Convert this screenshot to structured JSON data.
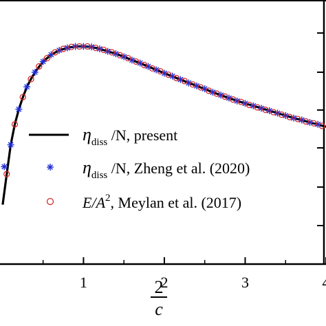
{
  "colors": {
    "present": "#000000",
    "zheng": "#1f2fd6",
    "meylan": "#d62c2c",
    "axis": "#000000"
  },
  "chart_data": {
    "type": "line",
    "title": "",
    "xlabel": {
      "numerator": "2",
      "denominator": "c"
    },
    "ylabel": "",
    "xlim": [
      -0.05,
      4.0
    ],
    "ylim": [
      0.65,
      1.15
    ],
    "xticks": [
      {
        "value": 1,
        "label": "1"
      },
      {
        "value": 2,
        "label": "2"
      },
      {
        "value": 3,
        "label": "3"
      },
      {
        "value": 4,
        "label": "4"
      }
    ],
    "legend_position": "center-left",
    "series": [
      {
        "name": "η_diss /N, present",
        "legend": {
          "symbol": "η",
          "sub": "diss",
          "rest": " /N, present"
        },
        "style": "line",
        "x": [
          0.0,
          0.05,
          0.1,
          0.15,
          0.2,
          0.25,
          0.3,
          0.35,
          0.4,
          0.5,
          0.6,
          0.7,
          0.8,
          0.9,
          1.0,
          1.1,
          1.2,
          1.4,
          1.6,
          1.8,
          2.0,
          2.2,
          2.4,
          2.6,
          2.8,
          3.0,
          3.2,
          3.4,
          3.6,
          3.8,
          4.0
        ],
        "y": [
          0.772,
          0.835,
          0.895,
          0.937,
          0.968,
          0.993,
          1.014,
          1.03,
          1.044,
          1.066,
          1.08,
          1.089,
          1.094,
          1.097,
          1.097,
          1.096,
          1.092,
          1.082,
          1.069,
          1.056,
          1.042,
          1.029,
          1.016,
          1.003,
          0.991,
          0.98,
          0.97,
          0.96,
          0.95,
          0.941,
          0.932
        ]
      },
      {
        "name": "η_diss /N, Zheng et al. (2020)",
        "legend": {
          "symbol": "η",
          "sub": "diss",
          "rest": " /N, Zheng et al. (2020)"
        },
        "style": "asterisk",
        "x": [
          0.02,
          0.1,
          0.2,
          0.3,
          0.4,
          0.5,
          0.6,
          0.7,
          0.8,
          0.9,
          1.0,
          1.1,
          1.2,
          1.3,
          1.4,
          1.5,
          1.6,
          1.7,
          1.8,
          1.9,
          2.0,
          2.1,
          2.2,
          2.3,
          2.4,
          2.5,
          2.6,
          2.7,
          2.8,
          2.9,
          3.0,
          3.1,
          3.2,
          3.3,
          3.4,
          3.5,
          3.6,
          3.7,
          3.8,
          3.9
        ],
        "y": [
          0.85,
          0.895,
          0.968,
          1.014,
          1.044,
          1.066,
          1.08,
          1.089,
          1.094,
          1.097,
          1.097,
          1.096,
          1.092,
          1.087,
          1.082,
          1.076,
          1.069,
          1.063,
          1.056,
          1.049,
          1.042,
          1.036,
          1.029,
          1.022,
          1.016,
          1.01,
          1.003,
          0.997,
          0.991,
          0.985,
          0.98,
          0.975,
          0.97,
          0.965,
          0.96,
          0.955,
          0.95,
          0.946,
          0.941,
          0.937
        ]
      },
      {
        "name": "E/A², Meylan et al. (2017)",
        "legend": {
          "symbol": "E",
          "sup": "2",
          "rest": "/A",
          "tail": ", Meylan et al. (2017)"
        },
        "style": "circle",
        "x": [
          0.05,
          0.15,
          0.25,
          0.35,
          0.45,
          0.55,
          0.65,
          0.75,
          0.85,
          0.95,
          1.05,
          1.15,
          1.25,
          1.35,
          1.45,
          1.55,
          1.65,
          1.75,
          1.85,
          1.95,
          2.05,
          2.15,
          2.25,
          2.35,
          2.45,
          2.55,
          2.65,
          2.75,
          2.85,
          2.95,
          3.05,
          3.15,
          3.25,
          3.35,
          3.45,
          3.55,
          3.65,
          3.75,
          3.85,
          3.95
        ],
        "y": [
          0.835,
          0.937,
          0.993,
          1.03,
          1.056,
          1.073,
          1.085,
          1.092,
          1.096,
          1.097,
          1.097,
          1.094,
          1.09,
          1.085,
          1.079,
          1.073,
          1.066,
          1.059,
          1.052,
          1.046,
          1.039,
          1.032,
          1.026,
          1.019,
          1.013,
          1.006,
          1.0,
          0.994,
          0.988,
          0.983,
          0.977,
          0.972,
          0.967,
          0.962,
          0.957,
          0.952,
          0.948,
          0.943,
          0.939,
          0.934
        ]
      }
    ]
  }
}
